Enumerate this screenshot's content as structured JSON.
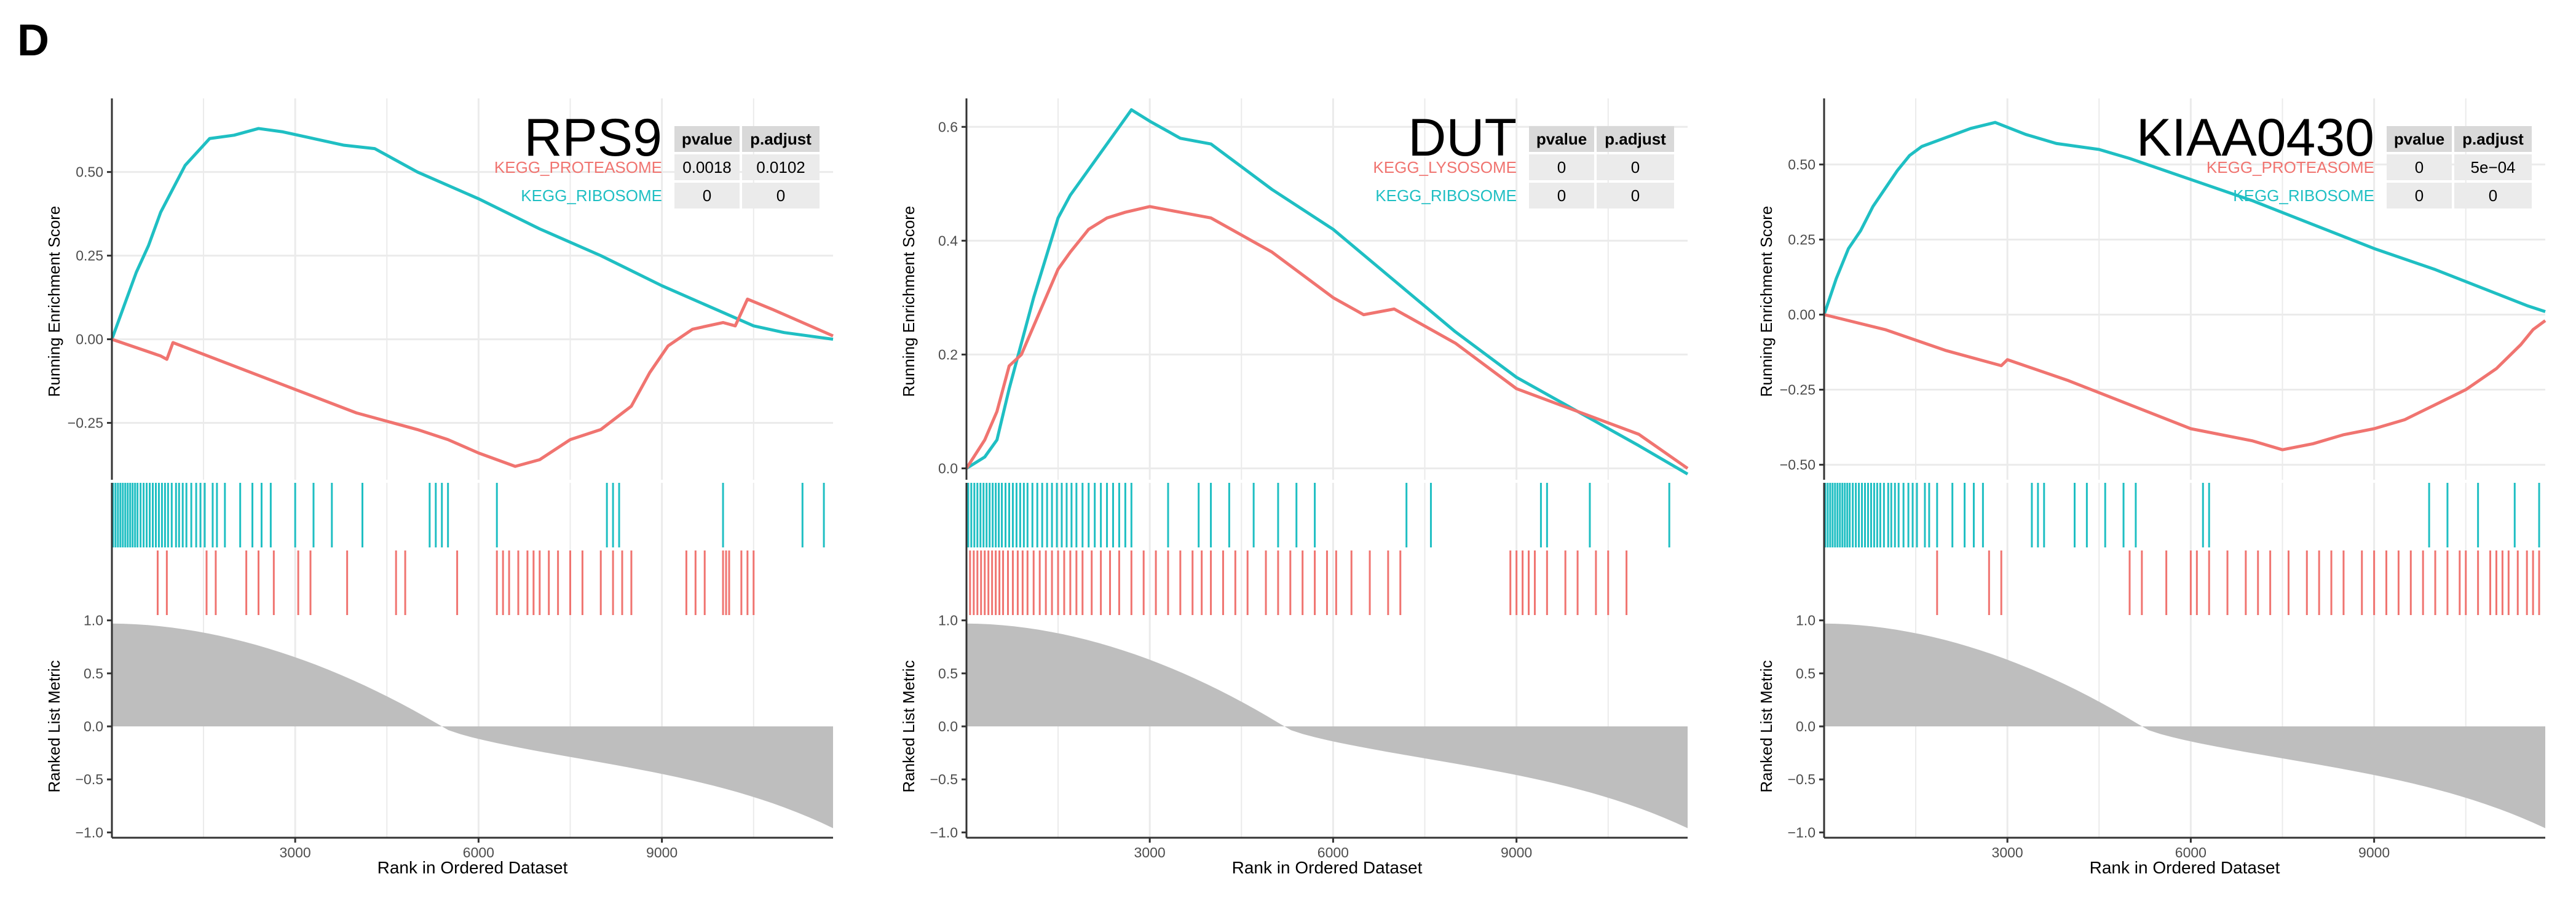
{
  "figure": {
    "panel_label": "D"
  },
  "colors": {
    "ribosome": "#1fbfc3",
    "secondary": "#f07470",
    "metric_fill": "#bebebe",
    "grid": "#ebebeb",
    "axis": "#333333",
    "table_header": "#d9d9d9",
    "table_cell": "#ebebeb"
  },
  "chart_data": [
    {
      "type": "line",
      "title": "RPS9",
      "xlabel": "Rank in Ordered Dataset",
      "ylabel_top": "Running Enrichment Score",
      "ylabel_bottom": "Ranked List Metric",
      "x_ticks": [
        "3000",
        "6000",
        "9000"
      ],
      "x_tick_values": [
        3000,
        6000,
        9000
      ],
      "x_range": [
        1,
        11800
      ],
      "es_range": [
        -0.42,
        0.72
      ],
      "es_ticks": [
        {
          "v": 0.5,
          "l": "0.50"
        },
        {
          "v": 0.25,
          "l": "0.25"
        },
        {
          "v": 0,
          "l": "0.00"
        },
        {
          "v": -0.25,
          "l": "−0.25"
        }
      ],
      "metric_range": [
        -1.05,
        1.05
      ],
      "metric_ticks": [
        {
          "v": 1,
          "l": "1.0"
        },
        {
          "v": 0.5,
          "l": "0.5"
        },
        {
          "v": 0,
          "l": "0.0"
        },
        {
          "v": -0.5,
          "l": "−0.5"
        },
        {
          "v": -1,
          "l": "−1.0"
        }
      ],
      "metric_zero_cross": 5400,
      "table": {
        "headers": [
          "pvalue",
          "p.adjust"
        ],
        "rows": [
          {
            "name": "KEGG_PROTEASOME",
            "color": "#f07470",
            "pvalue": "0.0018",
            "padjust": "0.0102"
          },
          {
            "name": "KEGG_RIBOSOME",
            "color": "#1fbfc3",
            "pvalue": "0",
            "padjust": "0"
          }
        ]
      },
      "series": [
        {
          "name": "KEGG_RIBOSOME",
          "color": "#1fbfc3",
          "x": [
            1,
            200,
            400,
            600,
            800,
            1000,
            1200,
            1400,
            1600,
            2000,
            2400,
            2800,
            3300,
            3800,
            4300,
            5000,
            6000,
            7000,
            8000,
            9000,
            10000,
            10500,
            11000,
            11800
          ],
          "y": [
            0,
            0.1,
            0.2,
            0.28,
            0.38,
            0.45,
            0.52,
            0.56,
            0.6,
            0.61,
            0.63,
            0.62,
            0.6,
            0.58,
            0.57,
            0.5,
            0.42,
            0.33,
            0.25,
            0.16,
            0.08,
            0.04,
            0.02,
            0
          ],
          "hits": [
            20,
            60,
            100,
            140,
            180,
            220,
            260,
            300,
            340,
            380,
            420,
            470,
            520,
            570,
            620,
            670,
            720,
            770,
            820,
            870,
            920,
            980,
            1050,
            1100,
            1160,
            1220,
            1300,
            1380,
            1450,
            1520,
            1650,
            1720,
            1850,
            2100,
            2300,
            2450,
            2600,
            3000,
            3300,
            3600,
            4100,
            5200,
            5300,
            5400,
            5500,
            6300,
            8100,
            8200,
            8300,
            10000,
            11300,
            11650
          ]
        },
        {
          "name": "KEGG_PROTEASOME",
          "color": "#f07470",
          "x": [
            1,
            800,
            900,
            1000,
            2000,
            3000,
            4000,
            5000,
            5500,
            6000,
            6600,
            7000,
            7500,
            8000,
            8500,
            8800,
            9100,
            9500,
            10000,
            10200,
            10400,
            10800,
            11800
          ],
          "y": [
            0,
            -0.05,
            -0.06,
            -0.01,
            -0.08,
            -0.15,
            -0.22,
            -0.27,
            -0.3,
            -0.34,
            -0.38,
            -0.36,
            -0.3,
            -0.27,
            -0.2,
            -0.1,
            -0.02,
            0.03,
            0.05,
            0.04,
            0.12,
            0.09,
            0.01
          ],
          "hits": [
            750,
            900,
            1550,
            1700,
            2200,
            2400,
            2650,
            3050,
            3250,
            3850,
            4650,
            4800,
            5650,
            6300,
            6400,
            6500,
            6650,
            6800,
            6900,
            7000,
            7150,
            7300,
            7500,
            7700,
            8000,
            8200,
            8350,
            8500,
            9400,
            9550,
            9700,
            10000,
            10050,
            10100,
            10300,
            10400,
            10500
          ]
        }
      ]
    },
    {
      "type": "line",
      "title": "DUT",
      "xlabel": "Rank in Ordered Dataset",
      "ylabel_top": "Running Enrichment Score",
      "ylabel_bottom": "Ranked List Metric",
      "x_ticks": [
        "3000",
        "6000",
        "9000"
      ],
      "x_tick_values": [
        3000,
        6000,
        9000
      ],
      "x_range": [
        1,
        11800
      ],
      "es_range": [
        -0.02,
        0.65
      ],
      "es_ticks": [
        {
          "v": 0.6,
          "l": "0.6"
        },
        {
          "v": 0.4,
          "l": "0.4"
        },
        {
          "v": 0.2,
          "l": "0.2"
        },
        {
          "v": 0,
          "l": "0.0"
        }
      ],
      "metric_range": [
        -1.05,
        1.05
      ],
      "metric_ticks": [
        {
          "v": 1,
          "l": "1.0"
        },
        {
          "v": 0.5,
          "l": "0.5"
        },
        {
          "v": 0,
          "l": "0.0"
        },
        {
          "v": -0.5,
          "l": "−0.5"
        },
        {
          "v": -1,
          "l": "−1.0"
        }
      ],
      "metric_zero_cross": 5200,
      "table": {
        "headers": [
          "pvalue",
          "p.adjust"
        ],
        "rows": [
          {
            "name": "KEGG_LYSOSOME",
            "color": "#f07470",
            "pvalue": "0",
            "padjust": "0"
          },
          {
            "name": "KEGG_RIBOSOME",
            "color": "#1fbfc3",
            "pvalue": "0",
            "padjust": "0"
          }
        ]
      },
      "series": [
        {
          "name": "KEGG_RIBOSOME",
          "color": "#1fbfc3",
          "x": [
            1,
            300,
            500,
            700,
            900,
            1100,
            1300,
            1500,
            1700,
            1900,
            2100,
            2300,
            2500,
            2700,
            3000,
            3500,
            4000,
            4500,
            5000,
            6000,
            7000,
            8000,
            9000,
            10000,
            11000,
            11800
          ],
          "y": [
            0,
            0.02,
            0.05,
            0.14,
            0.22,
            0.3,
            0.37,
            0.44,
            0.48,
            0.51,
            0.54,
            0.57,
            0.6,
            0.63,
            0.61,
            0.58,
            0.57,
            0.53,
            0.49,
            0.42,
            0.33,
            0.24,
            0.16,
            0.1,
            0.04,
            -0.01
          ],
          "hits": [
            30,
            80,
            130,
            180,
            230,
            280,
            330,
            380,
            430,
            480,
            530,
            580,
            640,
            700,
            760,
            820,
            880,
            940,
            1000,
            1080,
            1160,
            1240,
            1320,
            1400,
            1480,
            1560,
            1640,
            1720,
            1800,
            1900,
            2000,
            2100,
            2200,
            2300,
            2400,
            2500,
            2600,
            2700,
            3300,
            3800,
            4000,
            4300,
            4700,
            5100,
            5400,
            5700,
            7200,
            7600,
            9400,
            9500,
            10200,
            11500
          ]
        },
        {
          "name": "KEGG_LYSOSOME",
          "color": "#f07470",
          "x": [
            1,
            300,
            500,
            700,
            900,
            1100,
            1300,
            1500,
            1700,
            2000,
            2300,
            2600,
            3000,
            3500,
            4000,
            4500,
            5000,
            6000,
            6500,
            7000,
            8000,
            9000,
            10000,
            11000,
            11800
          ],
          "y": [
            0,
            0.05,
            0.1,
            0.18,
            0.2,
            0.25,
            0.3,
            0.35,
            0.38,
            0.42,
            0.44,
            0.45,
            0.46,
            0.45,
            0.44,
            0.41,
            0.38,
            0.3,
            0.27,
            0.28,
            0.22,
            0.14,
            0.1,
            0.06,
            0
          ]
        },
        {
          "name": "_hits_lysosome",
          "color": "#f07470",
          "x": [],
          "y": [],
          "hits": [
            60,
            120,
            180,
            240,
            300,
            360,
            420,
            480,
            540,
            600,
            680,
            760,
            840,
            920,
            1000,
            1100,
            1200,
            1300,
            1400,
            1500,
            1600,
            1700,
            1800,
            1900,
            2050,
            2200,
            2350,
            2500,
            2700,
            2900,
            3100,
            3300,
            3500,
            3700,
            3850,
            4000,
            4200,
            4400,
            4600,
            4900,
            5100,
            5300,
            5500,
            5700,
            5900,
            6050,
            6300,
            6600,
            6900,
            7100,
            8900,
            9000,
            9100,
            9200,
            9300,
            9500,
            9800,
            10000,
            10300,
            10500,
            10800
          ]
        }
      ]
    },
    {
      "type": "line",
      "title": "KIAA0430",
      "xlabel": "Rank in Ordered Dataset",
      "ylabel_top": "Running Enrichment Score",
      "ylabel_bottom": "Ranked List Metric",
      "x_ticks": [
        "3000",
        "6000",
        "9000"
      ],
      "x_tick_values": [
        3000,
        6000,
        9000
      ],
      "x_range": [
        1,
        11800
      ],
      "es_range": [
        -0.55,
        0.72
      ],
      "es_ticks": [
        {
          "v": 0.5,
          "l": "0.50"
        },
        {
          "v": 0.25,
          "l": "0.25"
        },
        {
          "v": 0,
          "l": "0.00"
        },
        {
          "v": -0.25,
          "l": "−0.25"
        },
        {
          "v": -0.5,
          "l": "−0.50"
        }
      ],
      "metric_range": [
        -1.05,
        1.05
      ],
      "metric_ticks": [
        {
          "v": 1,
          "l": "1.0"
        },
        {
          "v": 0.5,
          "l": "0.5"
        },
        {
          "v": 0,
          "l": "0.0"
        },
        {
          "v": -0.5,
          "l": "−0.5"
        },
        {
          "v": -1,
          "l": "−1.0"
        }
      ],
      "metric_zero_cross": 5200,
      "table": {
        "headers": [
          "pvalue",
          "p.adjust"
        ],
        "rows": [
          {
            "name": "KEGG_PROTEASOME",
            "color": "#f07470",
            "pvalue": "0",
            "padjust": "5e−04"
          },
          {
            "name": "KEGG_RIBOSOME",
            "color": "#1fbfc3",
            "pvalue": "0",
            "padjust": "0"
          }
        ]
      },
      "series": [
        {
          "name": "KEGG_RIBOSOME",
          "color": "#1fbfc3",
          "x": [
            1,
            200,
            400,
            600,
            800,
            1000,
            1200,
            1400,
            1600,
            2000,
            2400,
            2800,
            3300,
            3800,
            4500,
            5000,
            6000,
            7000,
            8000,
            9000,
            10000,
            11000,
            11500,
            11800
          ],
          "y": [
            0,
            0.12,
            0.22,
            0.28,
            0.36,
            0.42,
            0.48,
            0.53,
            0.56,
            0.59,
            0.62,
            0.64,
            0.6,
            0.57,
            0.55,
            0.52,
            0.45,
            0.38,
            0.3,
            0.22,
            0.15,
            0.07,
            0.03,
            0.01
          ],
          "hits": [
            20,
            60,
            100,
            140,
            180,
            220,
            260,
            300,
            340,
            380,
            420,
            470,
            520,
            570,
            620,
            670,
            720,
            770,
            820,
            870,
            920,
            980,
            1050,
            1100,
            1160,
            1220,
            1300,
            1380,
            1450,
            1520,
            1650,
            1720,
            1850,
            2100,
            2300,
            2450,
            2600,
            3400,
            3500,
            3600,
            4100,
            4300,
            4600,
            4900,
            5100,
            6200,
            6300,
            9900,
            10200,
            10700,
            11300,
            11700
          ]
        },
        {
          "name": "KEGG_PROTEASOME",
          "color": "#f07470",
          "x": [
            1,
            1000,
            2000,
            2900,
            3000,
            4000,
            5000,
            6000,
            7000,
            7500,
            8000,
            8500,
            9000,
            9500,
            10000,
            10500,
            11000,
            11400,
            11600,
            11800
          ],
          "y": [
            0,
            -0.05,
            -0.12,
            -0.17,
            -0.15,
            -0.22,
            -0.3,
            -0.38,
            -0.42,
            -0.45,
            -0.43,
            -0.4,
            -0.38,
            -0.35,
            -0.3,
            -0.25,
            -0.18,
            -0.1,
            -0.05,
            -0.02
          ],
          "hits": [
            1850,
            2700,
            2900,
            5000,
            5200,
            5600,
            6000,
            6100,
            6300,
            6600,
            6900,
            7100,
            7300,
            7600,
            7900,
            8100,
            8300,
            8500,
            8800,
            9000,
            9200,
            9400,
            9600,
            9800,
            10000,
            10200,
            10400,
            10500,
            10700,
            10900,
            11000,
            11100,
            11200,
            11350,
            11500,
            11600,
            11700
          ]
        }
      ]
    }
  ]
}
